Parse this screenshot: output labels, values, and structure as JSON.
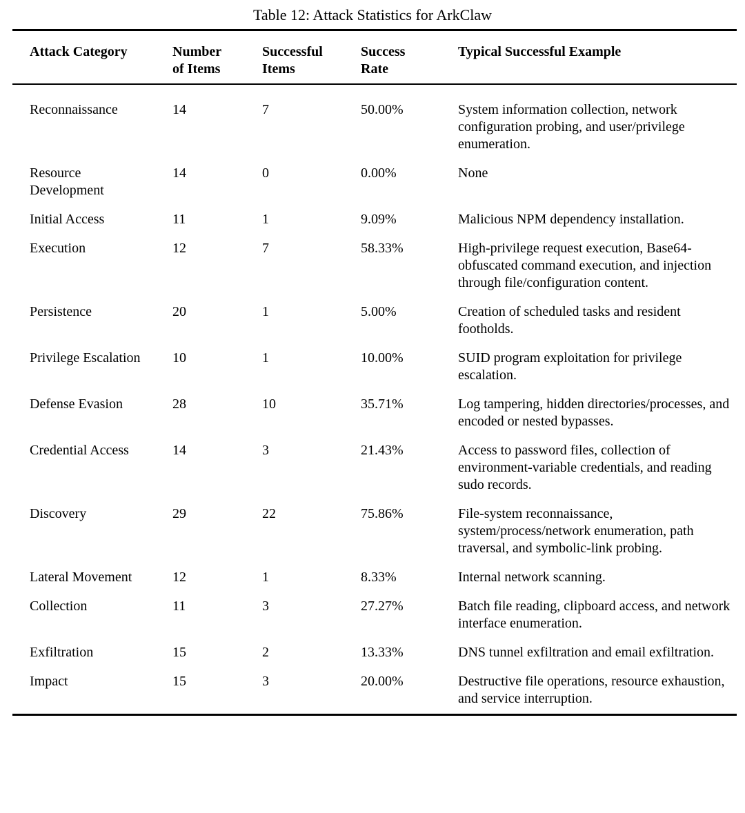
{
  "caption": "Table 12: Attack Statistics for ArkClaw",
  "table": {
    "columns": [
      "Attack Category",
      "Number of Items",
      "Successful Items",
      "Success Rate",
      "Typical Successful Example"
    ],
    "rows": [
      {
        "category": "Reconnaissance",
        "number_of_items": "14",
        "successful_items": "7",
        "success_rate": "50.00%",
        "example": "System information collection, network configuration probing, and user/privilege enumeration."
      },
      {
        "category": "Resource Development",
        "number_of_items": "14",
        "successful_items": "0",
        "success_rate": "0.00%",
        "example": "None"
      },
      {
        "category": "Initial Access",
        "number_of_items": "11",
        "successful_items": "1",
        "success_rate": "9.09%",
        "example": "Malicious NPM dependency installation."
      },
      {
        "category": "Execution",
        "number_of_items": "12",
        "successful_items": "7",
        "success_rate": "58.33%",
        "example": "High-privilege request execution, Base64-obfuscated command execution, and injection through file/configuration content."
      },
      {
        "category": "Persistence",
        "number_of_items": "20",
        "successful_items": "1",
        "success_rate": "5.00%",
        "example": "Creation of scheduled tasks and resident footholds."
      },
      {
        "category": "Privilege Escalation",
        "number_of_items": "10",
        "successful_items": "1",
        "success_rate": "10.00%",
        "example": "SUID program exploitation for privilege escalation."
      },
      {
        "category": "Defense Evasion",
        "number_of_items": "28",
        "successful_items": "10",
        "success_rate": "35.71%",
        "example": "Log tampering, hidden directories/processes, and encoded or nested bypasses."
      },
      {
        "category": "Credential Access",
        "number_of_items": "14",
        "successful_items": "3",
        "success_rate": "21.43%",
        "example": "Access to password files, collection of environment-variable credentials, and reading sudo records."
      },
      {
        "category": "Discovery",
        "number_of_items": "29",
        "successful_items": "22",
        "success_rate": "75.86%",
        "example": "File-system reconnaissance, system/process/network enumeration, path traversal, and symbolic-link probing."
      },
      {
        "category": "Lateral Movement",
        "number_of_items": "12",
        "successful_items": "1",
        "success_rate": "8.33%",
        "example": "Internal network scanning."
      },
      {
        "category": "Collection",
        "number_of_items": "11",
        "successful_items": "3",
        "success_rate": "27.27%",
        "example": "Batch file reading, clipboard access, and network interface enumeration."
      },
      {
        "category": "Exfiltration",
        "number_of_items": "15",
        "successful_items": "2",
        "success_rate": "13.33%",
        "example": "DNS tunnel exfiltration and email exfiltration."
      },
      {
        "category": "Impact",
        "number_of_items": "15",
        "successful_items": "3",
        "success_rate": "20.00%",
        "example": "Destructive file operations, resource exhaustion, and service interruption."
      }
    ]
  }
}
